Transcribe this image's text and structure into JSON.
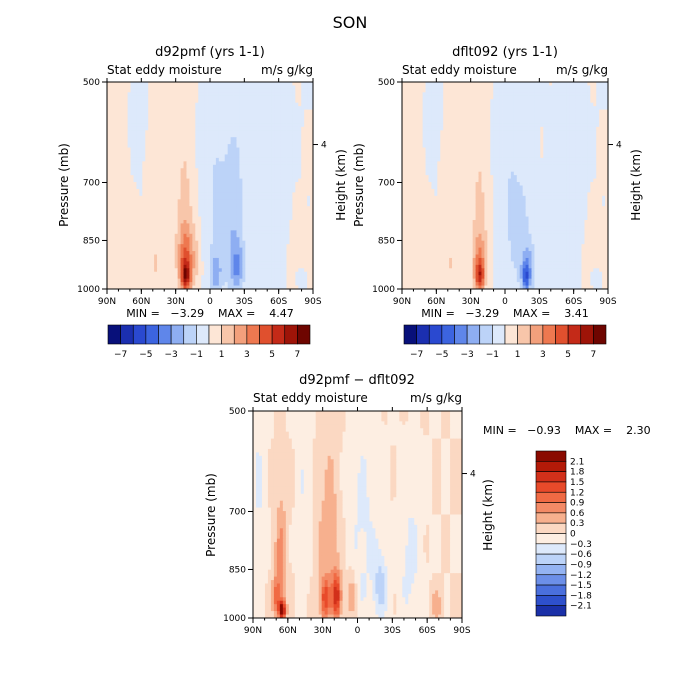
{
  "figure": {
    "title": "SON"
  },
  "panels": [
    {
      "id": "d92pmf",
      "title": "d92pmf (yrs 1-1)",
      "left_label": "Stat eddy moisture",
      "right_label": "m/s g/kg",
      "ylabel": "Pressure (mb)",
      "y2label": "Height (km)",
      "stats": "MIN =   −3.29    MAX =    4.47"
    },
    {
      "id": "dflt092",
      "title": "dflt092 (yrs 1-1)",
      "left_label": "Stat eddy moisture",
      "right_label": "m/s g/kg",
      "ylabel": "Pressure (mb)",
      "y2label": "Height (km)",
      "stats": "MIN =   −3.29    MAX =    3.41"
    },
    {
      "id": "diff",
      "title": "d92pmf − dflt092",
      "left_label": "Stat eddy moisture",
      "right_label": "m/s g/kg",
      "ylabel": "Pressure (mb)",
      "y2label": "Height (km)",
      "stats": "MIN =   −0.93    MAX =    2.30"
    }
  ],
  "colorbars": {
    "top": {
      "orientation": "horizontal",
      "labels": [
        "−7",
        "−5",
        "−3",
        "−1",
        "1",
        "3",
        "5",
        "7"
      ],
      "colors": [
        "#08107a",
        "#1b2fb0",
        "#2a49d0",
        "#3c64e0",
        "#5f86ea",
        "#8eaef2",
        "#bcd3f8",
        "#dde9fb",
        "#fde6d6",
        "#f8c6aa",
        "#f3a07c",
        "#ee7850",
        "#e0502e",
        "#c42a18",
        "#9e1408",
        "#6e0500"
      ]
    },
    "bottom": {
      "orientation": "vertical",
      "labels": [
        "2.1",
        "1.8",
        "1.5",
        "1.2",
        "0.9",
        "0.6",
        "0.3",
        "0",
        "−0.3",
        "−0.6",
        "−0.9",
        "−1.2",
        "−1.5",
        "−1.8",
        "−2.1"
      ],
      "colors": [
        "#8a0a00",
        "#b41a08",
        "#d2301a",
        "#e84a2a",
        "#f06a44",
        "#f38a66",
        "#f7b08e",
        "#fbd8c2",
        "#fdeee2",
        "#dde9fb",
        "#bcd3f8",
        "#94b3f2",
        "#6c8fe8",
        "#4a6fdd",
        "#2e50cc",
        "#1a30a8"
      ]
    }
  },
  "chart_data": {
    "type": "heatmap",
    "title": "SON",
    "x_tick_labels": [
      "90N",
      "60N",
      "30N",
      "0",
      "30S",
      "60S",
      "90S"
    ],
    "y_tick_labels": [
      "500",
      "700",
      "850",
      "1000"
    ],
    "y_ticks_mb": [
      500,
      700,
      850,
      1000
    ],
    "y2_tick_labels": [
      "4"
    ],
    "y2_ticks_km": [
      4
    ],
    "xlim": [
      90,
      -90
    ],
    "ylim_mb": [
      1000,
      500
    ],
    "panels": [
      {
        "name": "d92pmf (yrs 1-1)",
        "field": "Stat eddy moisture",
        "units": "m/s g/kg",
        "min": -3.29,
        "max": 4.47,
        "features": [
          {
            "lat": 75,
            "p": 760,
            "value": 0.4,
            "lat_w": 14,
            "p_w": 280
          },
          {
            "lat": 40,
            "p": 740,
            "value": 0.4,
            "lat_w": 12,
            "p_w": 300
          },
          {
            "lat": 22,
            "p": 790,
            "value": 1.5,
            "lat_w": 7,
            "p_w": 190
          },
          {
            "lat": 21,
            "p": 910,
            "value": 3.2,
            "lat_w": 7,
            "p_w": 90
          },
          {
            "lat": 21,
            "p": 960,
            "value": 4.4,
            "lat_w": 4,
            "p_w": 45
          },
          {
            "lat": 48,
            "p": 920,
            "value": 1.0,
            "lat_w": 5,
            "p_w": 70
          },
          {
            "lat": 12,
            "p": 900,
            "value": 0.8,
            "lat_w": 4,
            "p_w": 90
          },
          {
            "lat": 65,
            "p": 600,
            "value": -0.4,
            "lat_w": 9,
            "p_w": 140
          },
          {
            "lat": -14,
            "p": 820,
            "value": -1.3,
            "lat_w": 12,
            "p_w": 210
          },
          {
            "lat": -22,
            "p": 720,
            "value": -1.0,
            "lat_w": 9,
            "p_w": 180
          },
          {
            "lat": -5,
            "p": 950,
            "value": -2.0,
            "lat_w": 5,
            "p_w": 60
          },
          {
            "lat": -24,
            "p": 930,
            "value": -2.6,
            "lat_w": 6,
            "p_w": 85
          },
          {
            "lat": -2,
            "p": 700,
            "value": -0.6,
            "lat_w": 9,
            "p_w": 300
          },
          {
            "lat": -55,
            "p": 760,
            "value": -0.6,
            "lat_w": 12,
            "p_w": 300
          },
          {
            "lat": -78,
            "p": 900,
            "value": 0.6,
            "lat_w": 9,
            "p_w": 120
          },
          {
            "lat": -80,
            "p": 960,
            "value": -0.9,
            "lat_w": 5,
            "p_w": 40
          }
        ]
      },
      {
        "name": "dflt092 (yrs 1-1)",
        "field": "Stat eddy moisture",
        "units": "m/s g/kg",
        "min": -3.29,
        "max": 3.41,
        "features": [
          {
            "lat": 75,
            "p": 760,
            "value": 0.4,
            "lat_w": 14,
            "p_w": 280
          },
          {
            "lat": 40,
            "p": 740,
            "value": 0.4,
            "lat_w": 12,
            "p_w": 300
          },
          {
            "lat": 22,
            "p": 790,
            "value": 1.3,
            "lat_w": 7,
            "p_w": 190
          },
          {
            "lat": 22,
            "p": 920,
            "value": 2.6,
            "lat_w": 6,
            "p_w": 80
          },
          {
            "lat": 22,
            "p": 960,
            "value": 3.3,
            "lat_w": 4,
            "p_w": 40
          },
          {
            "lat": 48,
            "p": 920,
            "value": 0.9,
            "lat_w": 5,
            "p_w": 70
          },
          {
            "lat": 65,
            "p": 600,
            "value": -0.4,
            "lat_w": 9,
            "p_w": 140
          },
          {
            "lat": -14,
            "p": 820,
            "value": -1.2,
            "lat_w": 12,
            "p_w": 210
          },
          {
            "lat": -20,
            "p": 940,
            "value": -2.2,
            "lat_w": 6,
            "p_w": 80
          },
          {
            "lat": -18,
            "p": 960,
            "value": -3.2,
            "lat_w": 3,
            "p_w": 40
          },
          {
            "lat": -2,
            "p": 700,
            "value": -0.6,
            "lat_w": 9,
            "p_w": 300
          },
          {
            "lat": -55,
            "p": 760,
            "value": -0.6,
            "lat_w": 12,
            "p_w": 300
          },
          {
            "lat": -78,
            "p": 900,
            "value": 0.6,
            "lat_w": 9,
            "p_w": 120
          },
          {
            "lat": -80,
            "p": 960,
            "value": -0.9,
            "lat_w": 5,
            "p_w": 40
          }
        ]
      },
      {
        "name": "d92pmf − dflt092",
        "field": "Stat eddy moisture",
        "units": "m/s g/kg",
        "min": -0.93,
        "max": 2.3,
        "features": [
          {
            "lat": 66,
            "p": 820,
            "value": 0.7,
            "lat_w": 5,
            "p_w": 170
          },
          {
            "lat": 65,
            "p": 975,
            "value": 2.2,
            "lat_w": 3,
            "p_w": 30
          },
          {
            "lat": 70,
            "p": 930,
            "value": 0.9,
            "lat_w": 4,
            "p_w": 60
          },
          {
            "lat": 25,
            "p": 780,
            "value": 0.5,
            "lat_w": 10,
            "p_w": 250
          },
          {
            "lat": 18,
            "p": 930,
            "value": 1.6,
            "lat_w": 4,
            "p_w": 70
          },
          {
            "lat": 28,
            "p": 940,
            "value": 1.2,
            "lat_w": 4,
            "p_w": 60
          },
          {
            "lat": 5,
            "p": 930,
            "value": 0.6,
            "lat_w": 4,
            "p_w": 80
          },
          {
            "lat": 85,
            "p": 650,
            "value": -0.3,
            "lat_w": 6,
            "p_w": 250
          },
          {
            "lat": 45,
            "p": 650,
            "value": -0.3,
            "lat_w": 6,
            "p_w": 250
          },
          {
            "lat": -5,
            "p": 750,
            "value": -0.35,
            "lat_w": 14,
            "p_w": 300
          },
          {
            "lat": -20,
            "p": 900,
            "value": -0.7,
            "lat_w": 6,
            "p_w": 100
          },
          {
            "lat": -45,
            "p": 820,
            "value": -0.4,
            "lat_w": 10,
            "p_w": 200
          },
          {
            "lat": -68,
            "p": 960,
            "value": 0.5,
            "lat_w": 5,
            "p_w": 50
          }
        ]
      }
    ]
  }
}
